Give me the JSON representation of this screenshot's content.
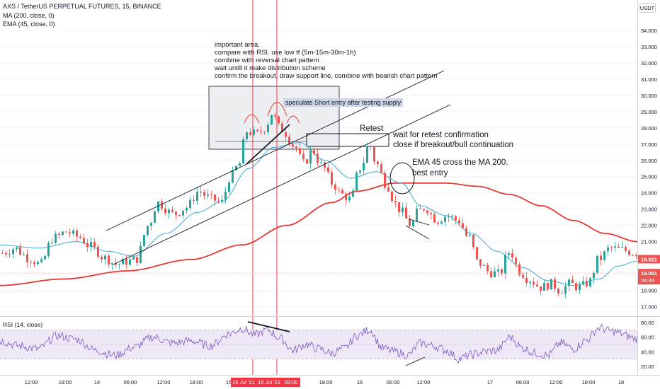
{
  "header": {
    "symbol_line": "AXS / TetherUS PERPETUAL FUTURES, 15, BINANCE",
    "ma_line": "MA (200, close, 0)",
    "ema_line": "EMA (45, close, 0)",
    "currency_button": "USDT"
  },
  "annotations": {
    "important_lines": [
      "important area.",
      "compare with RSI. use low tf (5m-15m-30m-1h)",
      "combine with reversal chart pattern",
      "wait untill it make distribution scheme",
      "confirm the breakout, draw support line, combine with bearish chart pattern"
    ],
    "speculate_tag": "speculate Short entry after testing supply",
    "retest": "Retest",
    "retest_confirm_1": "wait for retest confirmation",
    "retest_confirm_2": "close if breakout/bull continuation",
    "ema_cross_1": "EMA 45 cross the MA 200.",
    "ema_cross_2": "best entry"
  },
  "rsi_panel": {
    "label": "RSI (14, close)",
    "ticks": [
      "80.00",
      "60.00",
      "40.00",
      "20.00"
    ]
  },
  "colors": {
    "bull": "#26a69a",
    "bear": "#ef5350",
    "ma200": "#e53935",
    "ema45": "#3fa9d6",
    "rsi": "#7e57c2",
    "rsi_band": "#ede7f6",
    "price_tag": "#ef5350",
    "vline": "#f23645"
  },
  "chart_data": {
    "type": "candlestick",
    "title": "AXS / TetherUS PERPETUAL FUTURES, 15, BINANCE",
    "interval": "15",
    "y_axis": {
      "ticks": [
        "34.000",
        "33.000",
        "32.000",
        "31.000",
        "30.000",
        "29.000",
        "28.000",
        "27.000",
        "26.000",
        "25.000",
        "24.000",
        "23.000",
        "22.000",
        "21.000",
        "18.000",
        "17.000"
      ],
      "ylim": [
        16.5,
        35
      ]
    },
    "x_axis": {
      "ticks": [
        "12:00",
        "18:00",
        "14",
        "06:00",
        "12:00",
        "18:00",
        "15",
        "18:00",
        "16",
        "06:00",
        "12:00",
        "17",
        "06:00",
        "12:00",
        "18:00",
        "18"
      ],
      "highlighted": [
        "15 Jul '21",
        "15 Jul '21",
        "09:00"
      ]
    },
    "price_labels": [
      {
        "value": "19.921",
        "color": "#ef5350"
      },
      {
        "value": "19.061",
        "sub": "09:33",
        "color": "#ef5350"
      }
    ],
    "close_path": [
      [
        0,
        20.3
      ],
      [
        0.02,
        20.6
      ],
      [
        0.04,
        20.0
      ],
      [
        0.06,
        19.6
      ],
      [
        0.08,
        21.2
      ],
      [
        0.1,
        21.6
      ],
      [
        0.12,
        21.3
      ],
      [
        0.14,
        20.7
      ],
      [
        0.16,
        20.0
      ],
      [
        0.18,
        19.6
      ],
      [
        0.2,
        19.8
      ],
      [
        0.21,
        19.9
      ],
      [
        0.23,
        22.0
      ],
      [
        0.245,
        23.4
      ],
      [
        0.27,
        22.7
      ],
      [
        0.29,
        23.1
      ],
      [
        0.31,
        24.1
      ],
      [
        0.33,
        23.6
      ],
      [
        0.345,
        23.4
      ],
      [
        0.36,
        25.0
      ],
      [
        0.375,
        25.8
      ],
      [
        0.385,
        27.8
      ],
      [
        0.4,
        27.6
      ],
      [
        0.415,
        28.0
      ],
      [
        0.425,
        28.9
      ],
      [
        0.44,
        27.9
      ],
      [
        0.46,
        26.9
      ],
      [
        0.475,
        25.8
      ],
      [
        0.49,
        26.6
      ],
      [
        0.505,
        25.6
      ],
      [
        0.52,
        24.6
      ],
      [
        0.535,
        23.9
      ],
      [
        0.55,
        23.6
      ],
      [
        0.565,
        25.6
      ],
      [
        0.578,
        27.0
      ],
      [
        0.59,
        25.8
      ],
      [
        0.605,
        24.6
      ],
      [
        0.625,
        23.0
      ],
      [
        0.645,
        22.0
      ],
      [
        0.655,
        22.8
      ],
      [
        0.668,
        23.1
      ],
      [
        0.685,
        22.3
      ],
      [
        0.7,
        22.6
      ],
      [
        0.72,
        22.3
      ],
      [
        0.735,
        21.3
      ],
      [
        0.75,
        19.7
      ],
      [
        0.77,
        19.1
      ],
      [
        0.785,
        19.0
      ],
      [
        0.8,
        20.4
      ],
      [
        0.815,
        19.2
      ],
      [
        0.83,
        18.7
      ],
      [
        0.85,
        18.2
      ],
      [
        0.865,
        18.4
      ],
      [
        0.88,
        18.0
      ],
      [
        0.895,
        18.4
      ],
      [
        0.91,
        18.2
      ],
      [
        0.925,
        18.5
      ],
      [
        0.94,
        19.9
      ],
      [
        0.96,
        20.6
      ],
      [
        0.975,
        20.5
      ],
      [
        1,
        20.3
      ]
    ],
    "series": [
      {
        "name": "MA (200, close, 0)",
        "values": [
          [
            0,
            18.3
          ],
          [
            0.1,
            18.7
          ],
          [
            0.2,
            19.2
          ],
          [
            0.3,
            19.9
          ],
          [
            0.38,
            20.8
          ],
          [
            0.45,
            22.0
          ],
          [
            0.52,
            23.4
          ],
          [
            0.56,
            24.1
          ],
          [
            0.62,
            24.6
          ],
          [
            0.7,
            24.6
          ],
          [
            0.75,
            24.4
          ],
          [
            0.8,
            23.9
          ],
          [
            0.85,
            23.2
          ],
          [
            0.9,
            22.3
          ],
          [
            0.95,
            21.5
          ],
          [
            1,
            21.0
          ]
        ]
      },
      {
        "name": "EMA (45, close, 0)",
        "values": [
          [
            0,
            20.8
          ],
          [
            0.06,
            20.6
          ],
          [
            0.12,
            21.0
          ],
          [
            0.17,
            20.4
          ],
          [
            0.21,
            20.1
          ],
          [
            0.26,
            21.5
          ],
          [
            0.31,
            22.8
          ],
          [
            0.35,
            23.5
          ],
          [
            0.39,
            25.5
          ],
          [
            0.43,
            26.8
          ],
          [
            0.47,
            27.1
          ],
          [
            0.51,
            26.0
          ],
          [
            0.55,
            24.9
          ],
          [
            0.59,
            25.3
          ],
          [
            0.63,
            24.6
          ],
          [
            0.66,
            23.2
          ],
          [
            0.7,
            22.6
          ],
          [
            0.74,
            21.5
          ],
          [
            0.78,
            20.4
          ],
          [
            0.82,
            19.4
          ],
          [
            0.86,
            18.6
          ],
          [
            0.9,
            18.3
          ],
          [
            0.94,
            18.7
          ],
          [
            0.97,
            19.5
          ],
          [
            1,
            19.8
          ]
        ]
      }
    ],
    "rsi": {
      "ylim": [
        15,
        85
      ],
      "band": [
        30,
        70
      ],
      "values": [
        [
          0,
          55
        ],
        [
          0.03,
          48
        ],
        [
          0.06,
          44
        ],
        [
          0.09,
          62
        ],
        [
          0.12,
          57
        ],
        [
          0.15,
          42
        ],
        [
          0.18,
          35
        ],
        [
          0.21,
          46
        ],
        [
          0.24,
          60
        ],
        [
          0.27,
          52
        ],
        [
          0.3,
          55
        ],
        [
          0.33,
          48
        ],
        [
          0.36,
          65
        ],
        [
          0.38,
          72
        ],
        [
          0.4,
          63
        ],
        [
          0.42,
          70
        ],
        [
          0.44,
          58
        ],
        [
          0.46,
          42
        ],
        [
          0.48,
          50
        ],
        [
          0.5,
          44
        ],
        [
          0.52,
          38
        ],
        [
          0.54,
          44
        ],
        [
          0.56,
          62
        ],
        [
          0.58,
          70
        ],
        [
          0.6,
          45
        ],
        [
          0.62,
          40
        ],
        [
          0.64,
          35
        ],
        [
          0.66,
          52
        ],
        [
          0.68,
          48
        ],
        [
          0.7,
          42
        ],
        [
          0.72,
          30
        ],
        [
          0.74,
          36
        ],
        [
          0.76,
          40
        ],
        [
          0.78,
          42
        ],
        [
          0.8,
          60
        ],
        [
          0.82,
          45
        ],
        [
          0.84,
          38
        ],
        [
          0.86,
          35
        ],
        [
          0.88,
          52
        ],
        [
          0.9,
          44
        ],
        [
          0.92,
          56
        ],
        [
          0.94,
          73
        ],
        [
          0.96,
          68
        ],
        [
          1,
          58
        ]
      ]
    }
  }
}
